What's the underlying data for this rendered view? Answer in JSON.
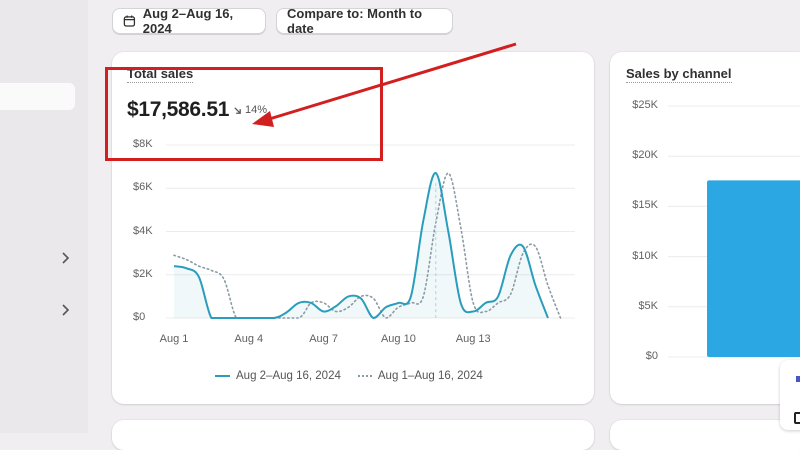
{
  "toolbar": {
    "date_range_label": "Aug 2–Aug 16, 2024",
    "compare_label": "Compare to: Month to date"
  },
  "total_sales": {
    "title": "Total sales",
    "value": "$17,586.51",
    "change": "14%",
    "change_direction": "down"
  },
  "sales_by_channel": {
    "title": "Sales by channel"
  },
  "legend": {
    "current": "Aug 2–Aug 16, 2024",
    "previous": "Aug 1–Aug 16, 2024"
  },
  "colors": {
    "current_line": "#2a9dbc",
    "previous_line": "#8a9ba4",
    "channel_bar": "#2ba8e4",
    "annotation": "#d21f1f"
  },
  "chart_data": [
    {
      "type": "line",
      "title": "Total sales",
      "y_ticks": [
        "$8K",
        "$6K",
        "$4K",
        "$2K",
        "$0"
      ],
      "ylim": [
        0,
        8000
      ],
      "x_tick_labels": [
        "Aug 1",
        "Aug 4",
        "Aug 7",
        "Aug 10",
        "Aug 13"
      ],
      "x_tick_days": [
        0,
        3,
        6,
        9,
        12
      ],
      "xlim": [
        0,
        15
      ],
      "grid": true,
      "legend_placement": "bottom-center",
      "series": [
        {
          "name": "Aug 2–Aug 16, 2024",
          "style": "solid",
          "points": [
            [
              0,
              2400
            ],
            [
              0.5,
              2300
            ],
            [
              1,
              1900
            ],
            [
              1.5,
              0
            ],
            [
              2,
              0
            ],
            [
              3,
              0
            ],
            [
              4,
              0
            ],
            [
              4.5,
              250
            ],
            [
              5,
              700
            ],
            [
              5.5,
              700
            ],
            [
              6,
              300
            ],
            [
              6.5,
              550
            ],
            [
              7,
              1000
            ],
            [
              7.5,
              900
            ],
            [
              8,
              0
            ],
            [
              8.5,
              500
            ],
            [
              9,
              700
            ],
            [
              9.5,
              1000
            ],
            [
              10,
              4500
            ],
            [
              10.5,
              6700
            ],
            [
              11,
              4000
            ],
            [
              11.5,
              700
            ],
            [
              12,
              300
            ],
            [
              12.5,
              700
            ],
            [
              13,
              1000
            ],
            [
              13.5,
              2900
            ],
            [
              14,
              3300
            ],
            [
              14.5,
              1500
            ],
            [
              15,
              0
            ]
          ]
        },
        {
          "name": "Aug 1–Aug 16, 2024",
          "style": "dotted",
          "points": [
            [
              0,
              2900
            ],
            [
              0.5,
              2700
            ],
            [
              1,
              2400
            ],
            [
              1.5,
              2200
            ],
            [
              2,
              1800
            ],
            [
              2.5,
              0
            ],
            [
              3,
              0
            ],
            [
              4,
              0
            ],
            [
              5,
              0
            ],
            [
              5.5,
              700
            ],
            [
              6,
              700
            ],
            [
              6.5,
              300
            ],
            [
              7,
              500
            ],
            [
              7.5,
              1000
            ],
            [
              8,
              900
            ],
            [
              8.5,
              0
            ],
            [
              9,
              500
            ],
            [
              9.5,
              700
            ],
            [
              10,
              1000
            ],
            [
              10.5,
              4400
            ],
            [
              11,
              6700
            ],
            [
              11.5,
              4200
            ],
            [
              12,
              700
            ],
            [
              12.5,
              300
            ],
            [
              13,
              700
            ],
            [
              13.5,
              1100
            ],
            [
              14,
              3000
            ],
            [
              14.5,
              3300
            ],
            [
              15,
              1500
            ],
            [
              15.5,
              0
            ]
          ]
        }
      ]
    },
    {
      "type": "bar",
      "title": "Sales by channel",
      "y_ticks": [
        "$25K",
        "$20K",
        "$15K",
        "$10K",
        "$5K",
        "$0"
      ],
      "ylim": [
        0,
        25000
      ],
      "grid": true,
      "values": [
        17586.51
      ]
    }
  ]
}
